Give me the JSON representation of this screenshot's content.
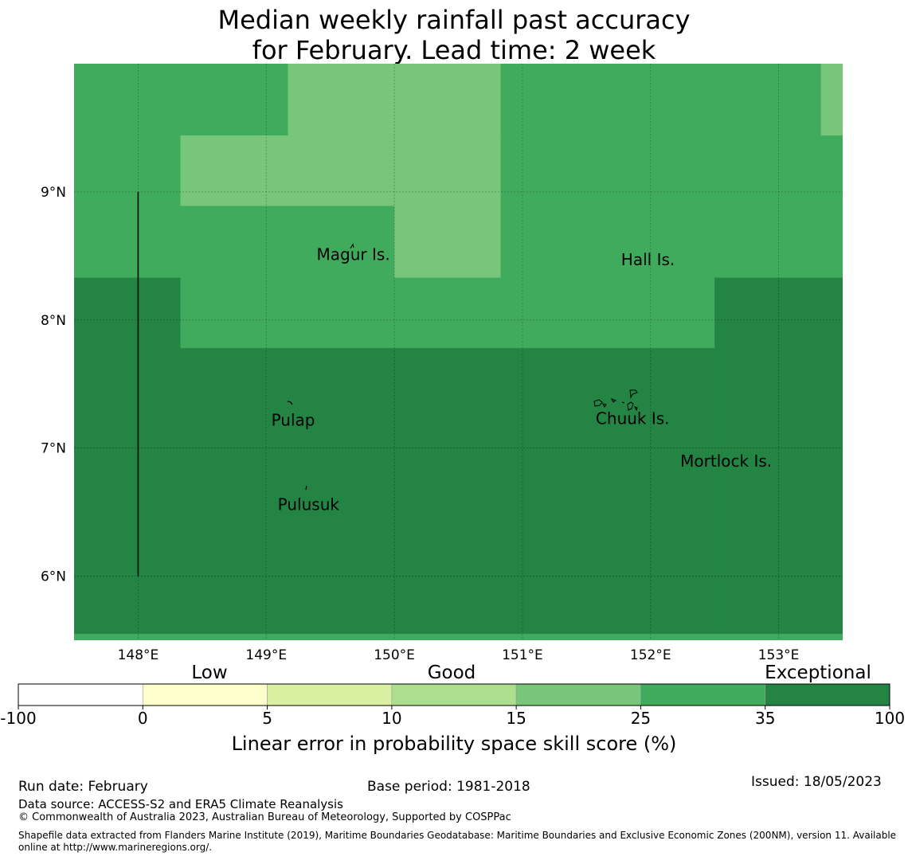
{
  "title": {
    "line1": "Median weekly rainfall past accuracy",
    "line2": "for February. Lead time: 2 week"
  },
  "map": {
    "lon_range": [
      147.5,
      153.5
    ],
    "lat_range": [
      5.5,
      10.0
    ],
    "x_ticks": [
      {
        "lon": 148,
        "label": "148°E"
      },
      {
        "lon": 149,
        "label": "149°E"
      },
      {
        "lon": 150,
        "label": "150°E"
      },
      {
        "lon": 151,
        "label": "151°E"
      },
      {
        "lon": 152,
        "label": "152°E"
      },
      {
        "lon": 153,
        "label": "153°E"
      }
    ],
    "y_ticks": [
      {
        "lat": 9,
        "label": "9°N"
      },
      {
        "lat": 8,
        "label": "8°N"
      },
      {
        "lat": 7,
        "label": "7°N"
      },
      {
        "lat": 6,
        "label": "6°N"
      }
    ],
    "cells": [
      {
        "lon0": 147.5,
        "lon1": 153.5,
        "lat0": 5.5,
        "lat1": 10.0,
        "category": "25-35"
      },
      {
        "lon0": 149.17,
        "lon1": 150.83,
        "lat0": 9.44,
        "lat1": 10.0,
        "category": "15-25"
      },
      {
        "lon0": 148.33,
        "lon1": 150.0,
        "lat0": 8.89,
        "lat1": 9.44,
        "category": "15-25"
      },
      {
        "lon0": 150.0,
        "lon1": 150.83,
        "lat0": 8.33,
        "lat1": 9.44,
        "category": "15-25"
      },
      {
        "lon0": 153.33,
        "lon1": 153.5,
        "lat0": 9.44,
        "lat1": 10.0,
        "category": "15-25"
      },
      {
        "lon0": 147.5,
        "lon1": 148.33,
        "lat0": 5.55,
        "lat1": 8.33,
        "category": "35-100"
      },
      {
        "lon0": 148.33,
        "lon1": 152.5,
        "lat0": 5.55,
        "lat1": 7.78,
        "category": "35-100"
      },
      {
        "lon0": 152.5,
        "lon1": 153.5,
        "lat0": 5.55,
        "lat1": 8.33,
        "category": "35-100"
      }
    ],
    "boundary_line": {
      "lon": 148.0,
      "lat0": 6.0,
      "lat1": 9.0
    },
    "places": [
      {
        "name": "Magur Is.",
        "lon": 149.68,
        "lat": 8.51
      },
      {
        "name": "Hall Is.",
        "lon": 151.98,
        "lat": 8.47
      },
      {
        "name": "Pulap",
        "lon": 149.21,
        "lat": 7.22
      },
      {
        "name": "Chuuk Is.",
        "lon": 151.86,
        "lat": 7.23
      },
      {
        "name": "Mortlock Is.",
        "lon": 152.59,
        "lat": 6.9
      },
      {
        "name": "Pulusuk",
        "lon": 149.33,
        "lat": 6.56
      }
    ]
  },
  "colorbar": {
    "bins": [
      {
        "from": "-100",
        "to": "0",
        "color": "#ffffff"
      },
      {
        "from": "0",
        "to": "5",
        "color": "#ffffcc"
      },
      {
        "from": "5",
        "to": "10",
        "color": "#d9f0a3"
      },
      {
        "from": "10",
        "to": "15",
        "color": "#addd8e"
      },
      {
        "from": "15",
        "to": "25",
        "color": "#78c679"
      },
      {
        "from": "25",
        "to": "35",
        "color": "#41ab5d"
      },
      {
        "from": "35",
        "to": "100",
        "color": "#238443"
      }
    ],
    "tick_labels": [
      "-100",
      "0",
      "5",
      "10",
      "15",
      "25",
      "35",
      "100"
    ],
    "categories": [
      "Low",
      "Good",
      "Exceptional"
    ],
    "title": "Linear error in probability space skill score (%)"
  },
  "colors": {
    "15-25": "#78c679",
    "25-35": "#41ab5d",
    "35-100": "#238443"
  },
  "footer": {
    "run_date": "Run date: February",
    "base_period": "Base period: 1981-2018",
    "issued": "Issued: 18/05/2023",
    "data_source": "Data source: ACCESS-S2 and ERA5 Climate Reanalysis",
    "copyright": "© Commonwealth of Australia 2023, Australian Bureau of Meteorology, Supported by COSPPac",
    "shapefile": "Shapefile data extracted from Flanders Marine Institute (2019), Maritime Boundaries Geodatabase: Maritime Boundaries and Exclusive Economic Zones (200NM), version 11. Available online at http://www.marineregions.org/."
  }
}
